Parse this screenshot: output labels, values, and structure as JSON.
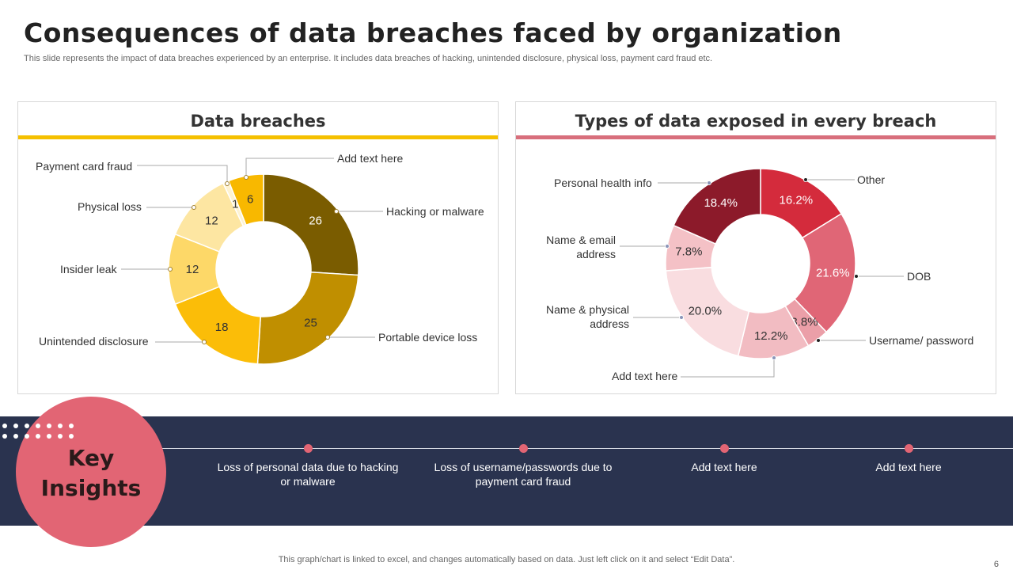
{
  "header": {
    "title": "Consequences of data breaches faced by organization",
    "subtitle": "This slide represents the impact of data breaches experienced by an enterprise. It includes data breaches of hacking, unintended disclosure, physical loss, payment card fraud etc."
  },
  "colors": {
    "yellow_accent": "#f5c000",
    "red_accent": "#d86f7c",
    "band": "#2a334f",
    "circle": "#e26574"
  },
  "chart_data": [
    {
      "type": "pie",
      "title": "Data breaches",
      "donut": true,
      "categories": [
        "Hacking or malware",
        "Portable device loss",
        "Unintended disclosure",
        "Insider leak",
        "Physical loss",
        "Payment card fraud",
        "Add text here"
      ],
      "values": [
        26,
        25,
        18,
        12,
        12,
        1,
        6
      ],
      "value_labels": [
        "26",
        "25",
        "18",
        "12",
        "12",
        "1",
        "6"
      ],
      "colors": [
        "#7a5c00",
        "#c08f00",
        "#fbbd08",
        "#fdd868",
        "#fde6a2",
        "#fef3d2",
        "#f8b800"
      ],
      "label_colors": [
        "#fff",
        "#333",
        "#333",
        "#333",
        "#333",
        "#333",
        "#333"
      ]
    },
    {
      "type": "pie",
      "title": "Types of data exposed in every breach",
      "donut": true,
      "categories": [
        "Other",
        "DOB",
        "Username/ password",
        "Add text here",
        "Name & physical address",
        "Name & email address",
        "Personal health info"
      ],
      "values": [
        16.2,
        21.6,
        3.8,
        12.2,
        20.0,
        7.8,
        18.4
      ],
      "value_labels": [
        "16.2%",
        "21.6%",
        "3.8%",
        "12.2%",
        "20.0%",
        "7.8%",
        "18.4%"
      ],
      "colors": [
        "#d42b3c",
        "#e06676",
        "#eb9fa8",
        "#f2bcc2",
        "#f9dde0",
        "#f4c1c6",
        "#8c1a2a"
      ],
      "label_colors": [
        "#fff",
        "#fff",
        "#333",
        "#333",
        "#333",
        "#333",
        "#fff"
      ]
    }
  ],
  "insights": {
    "title_line1": "Key",
    "title_line2": "Insights",
    "items": [
      "Loss of personal data due to hacking or malware",
      "Loss of username/passwords due to payment card fraud",
      "Add text here",
      "Add text here"
    ]
  },
  "footer": {
    "note": "This graph/chart is linked to excel,  and changes automatically based on data. Just left click on it and select “Edit Data”.",
    "page": "6"
  }
}
